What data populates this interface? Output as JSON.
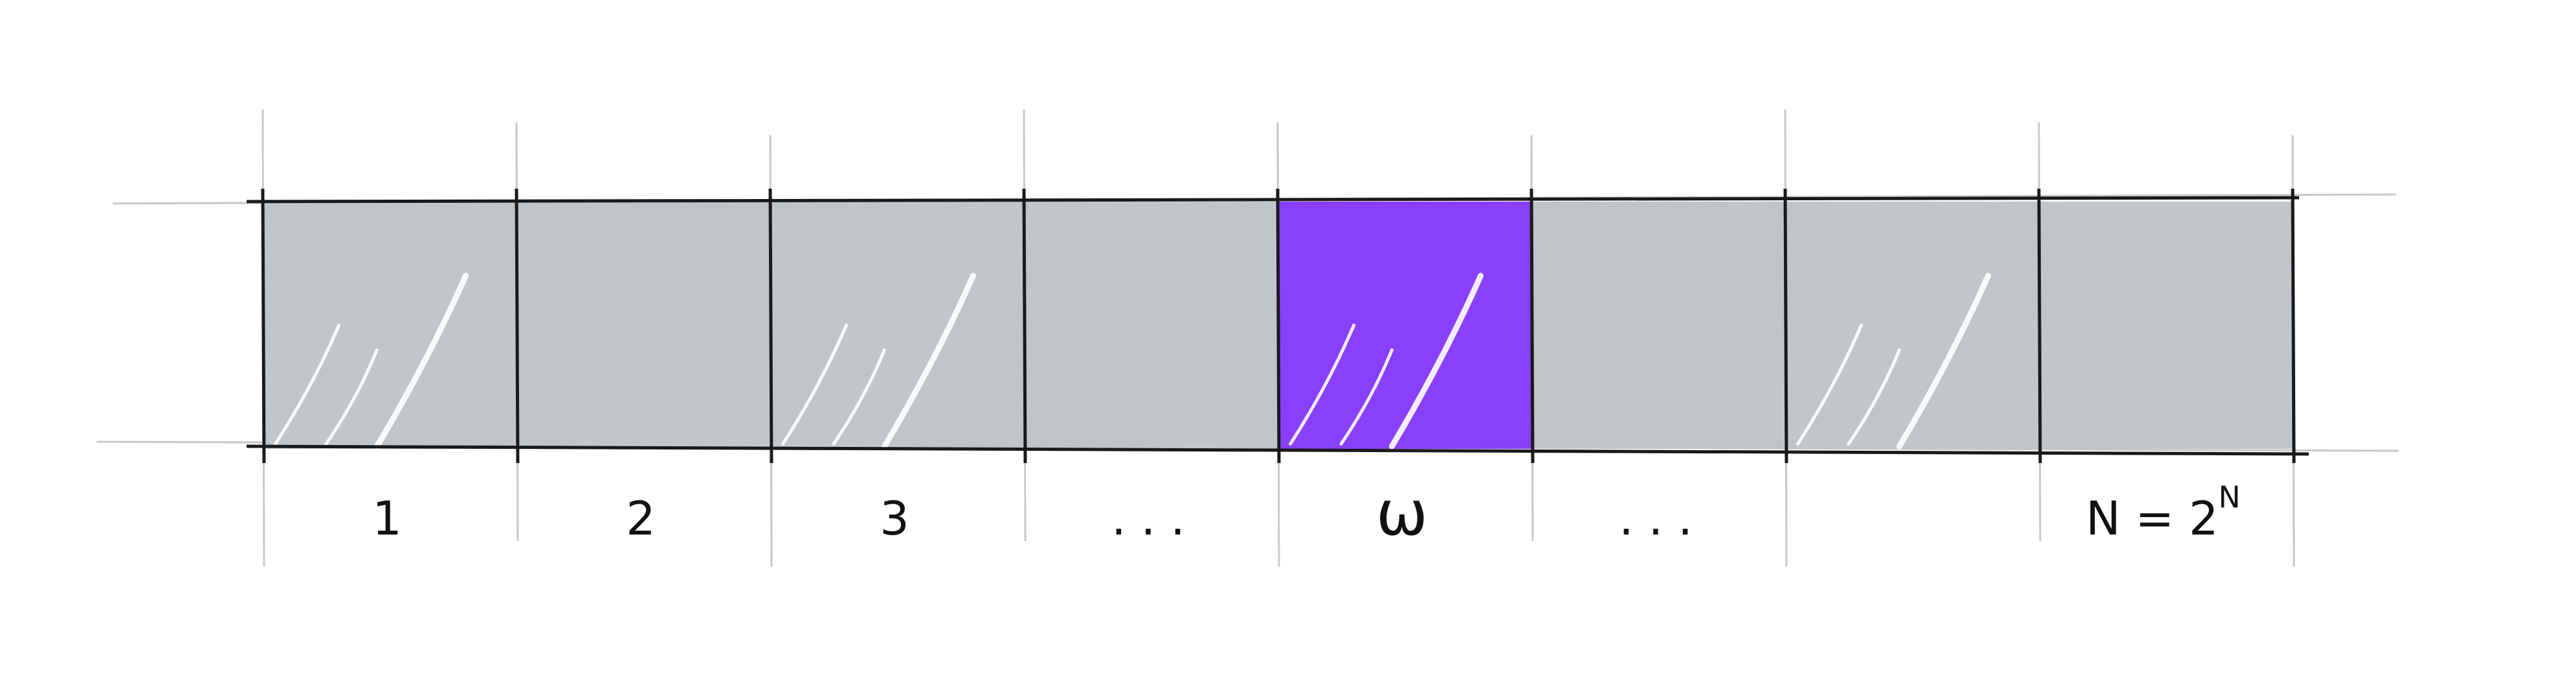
{
  "diagram": {
    "cells": [
      {
        "id": "cell-1",
        "label": "1",
        "highlighted": false
      },
      {
        "id": "cell-2",
        "label": "2",
        "highlighted": false
      },
      {
        "id": "cell-3",
        "label": "3",
        "highlighted": false
      },
      {
        "id": "cell-ellipsis-left",
        "label": ". . .",
        "highlighted": false
      },
      {
        "id": "cell-omega",
        "label": "ω",
        "highlighted": true
      },
      {
        "id": "cell-ellipsis-right",
        "label": ". . .",
        "highlighted": false
      },
      {
        "id": "cell-7",
        "label": "",
        "highlighted": false
      },
      {
        "id": "cell-last",
        "label": "N = 2",
        "superscript": "N",
        "highlighted": false
      }
    ],
    "colors": {
      "cell_fill": "#c0c5ca",
      "highlight_fill": "#8a3ffc",
      "border": "#1a1a1a",
      "guide": "#c8c8c8",
      "sheen": "#ffffff"
    }
  }
}
